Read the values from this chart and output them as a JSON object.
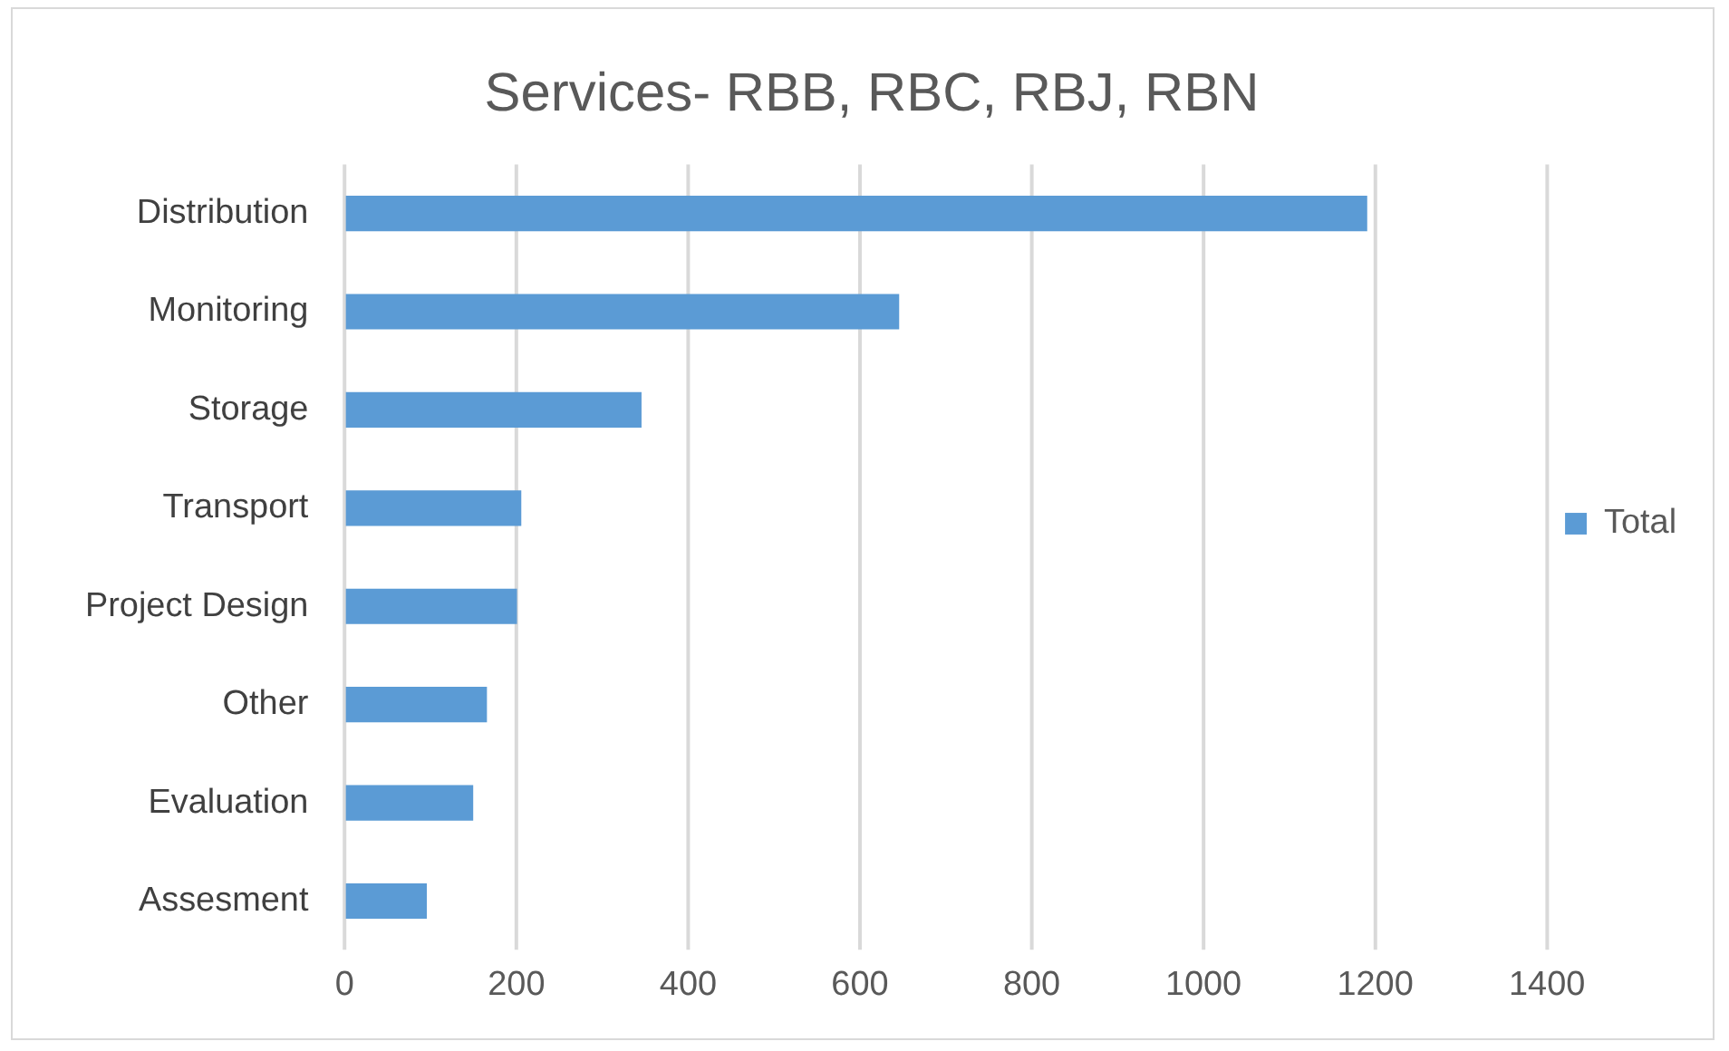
{
  "chart_data": {
    "type": "bar",
    "orientation": "horizontal",
    "title": "Services- RBB, RBC, RBJ, RBN",
    "categories": [
      "Distribution",
      "Monitoring",
      "Storage",
      "Transport",
      "Project Design",
      "Other",
      "Evaluation",
      "Assesment"
    ],
    "series": [
      {
        "name": "Total",
        "color": "#5b9bd5",
        "values": [
          1190,
          645,
          345,
          205,
          200,
          165,
          149,
          95
        ]
      }
    ],
    "xlim": [
      0,
      1400
    ],
    "xticks": [
      0,
      200,
      400,
      600,
      800,
      1000,
      1200,
      1400
    ],
    "grid": "x",
    "legend": "right"
  }
}
